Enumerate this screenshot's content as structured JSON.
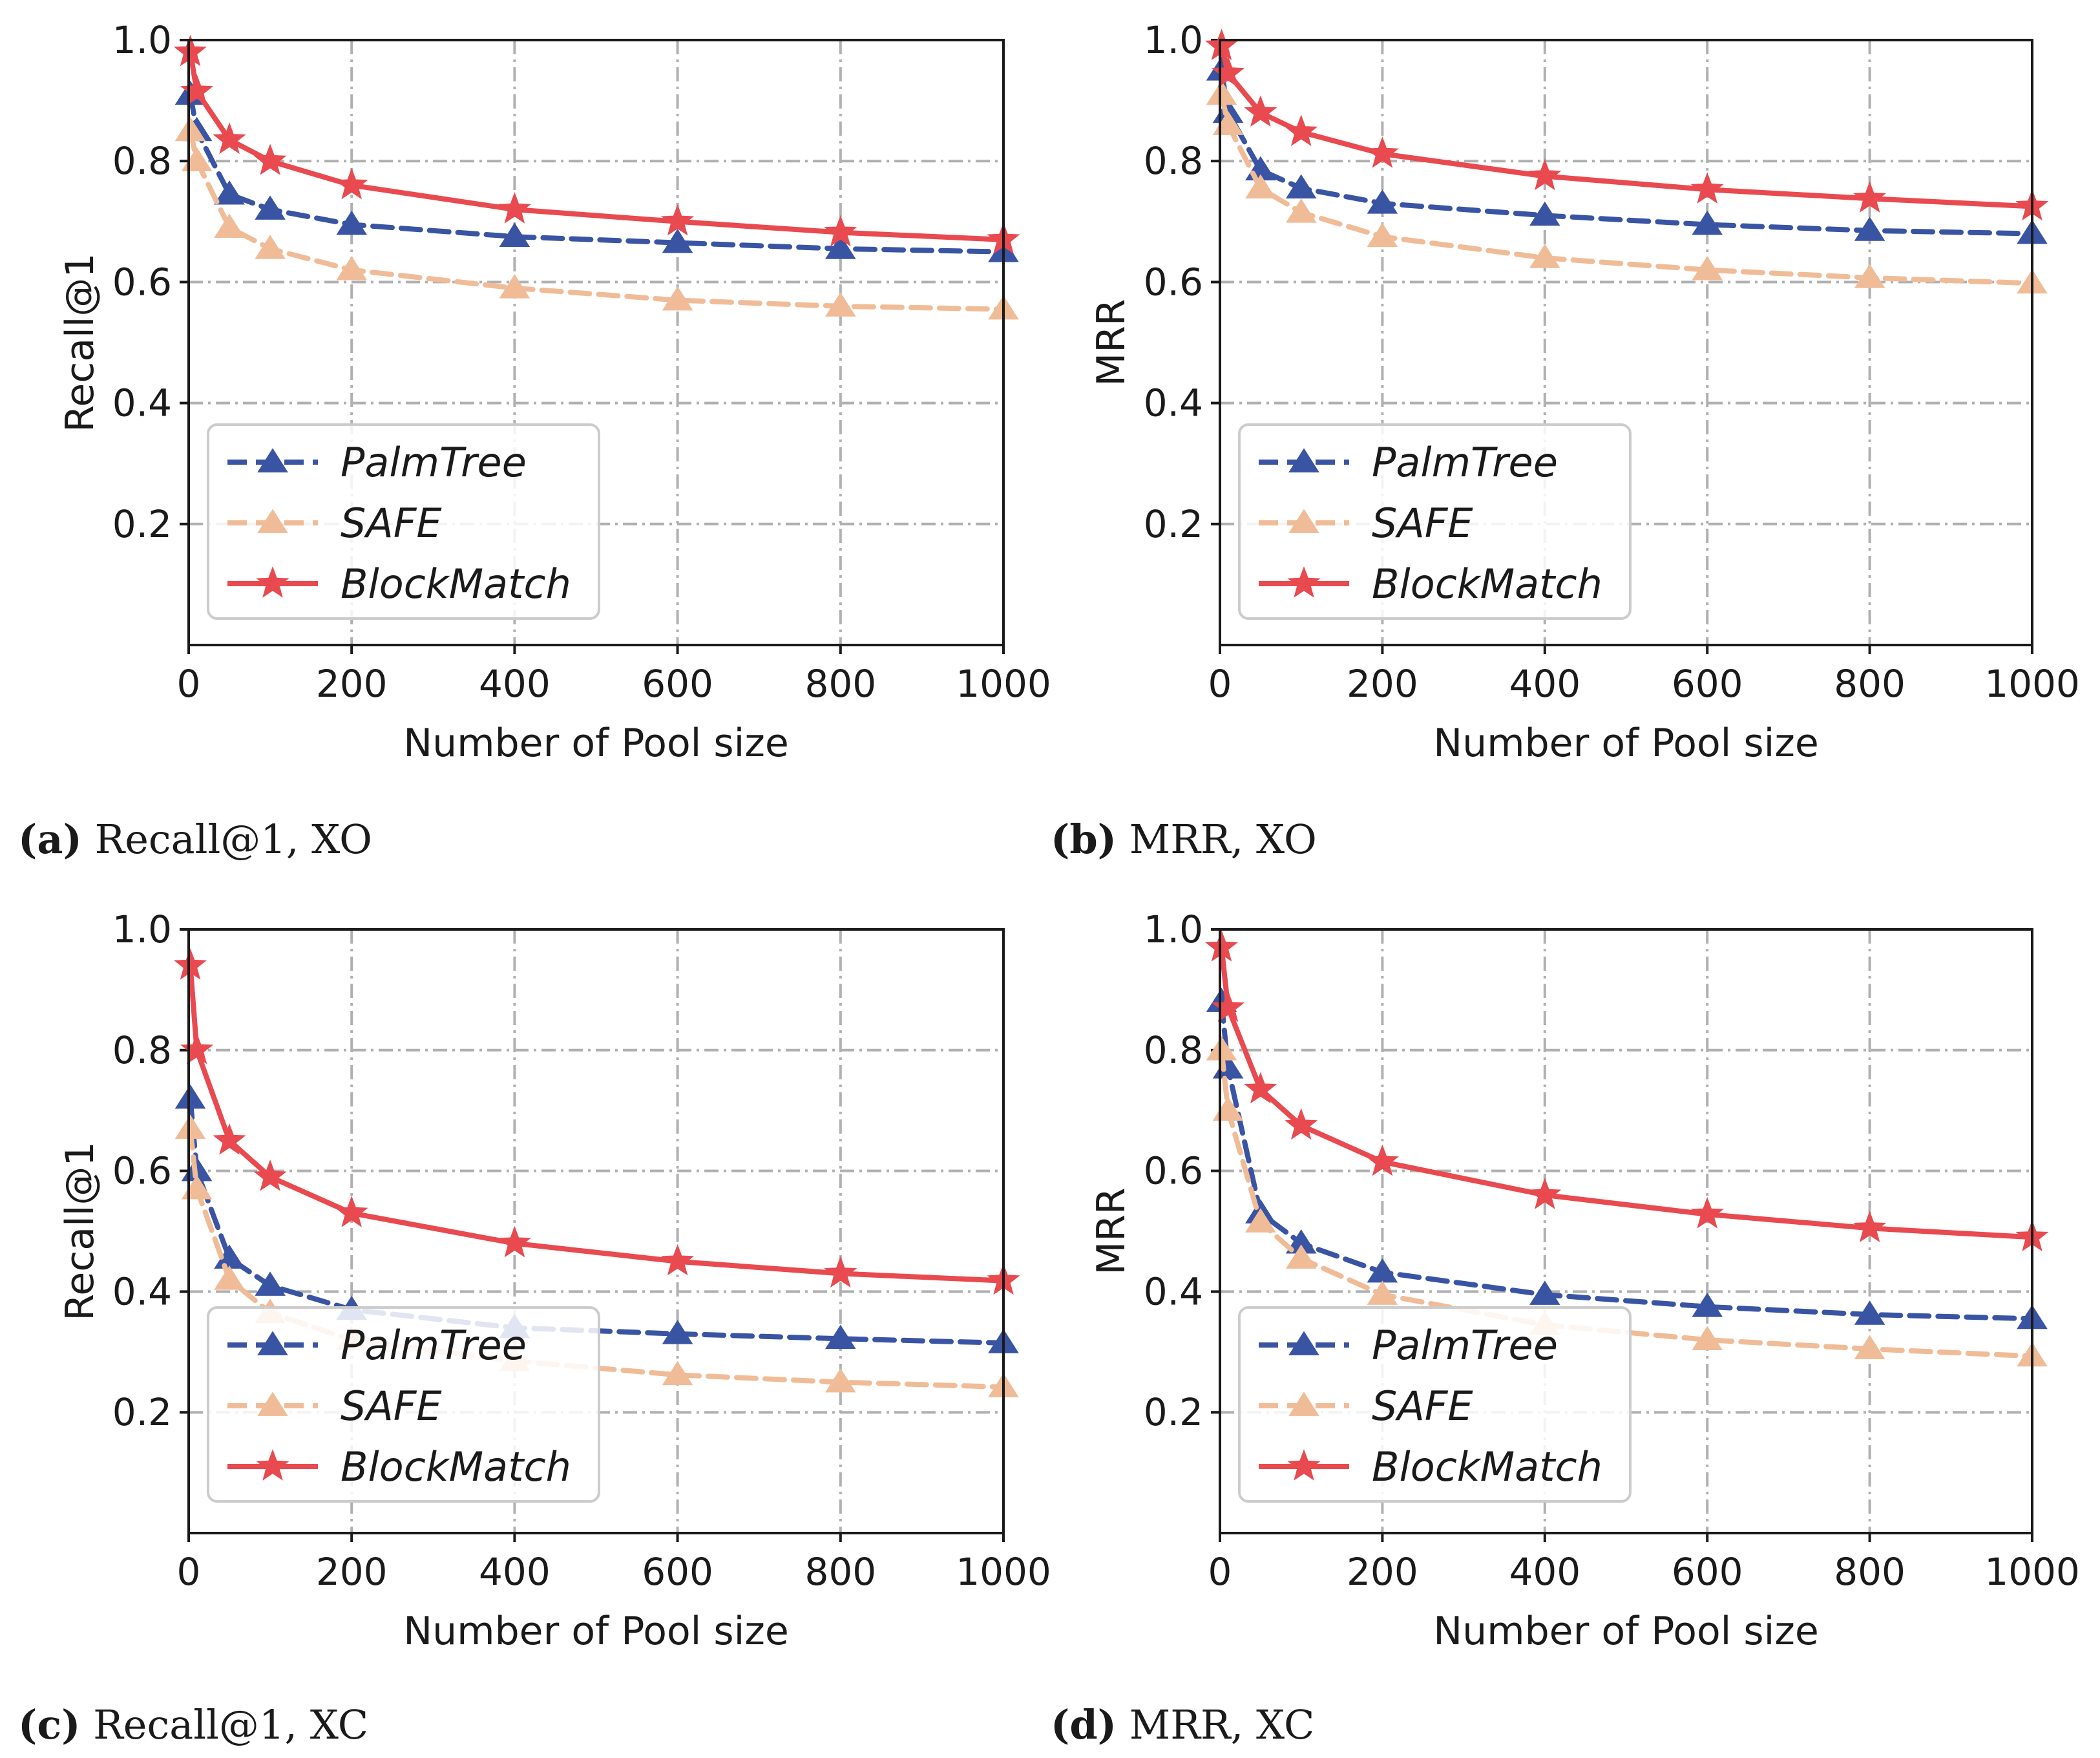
{
  "colors": {
    "PalmTree": "#3a54a4",
    "SAFE": "#f0bc97",
    "BlockMatch": "#e84a4f"
  },
  "chart_data": [
    {
      "id": "a",
      "type": "line",
      "caption_id": "(a)",
      "caption_text": " Recall@1, XO",
      "xlabel": "Number of Pool size",
      "ylabel": "Recall@1",
      "xlim": [
        0,
        1000
      ],
      "ylim": [
        0,
        1.0
      ],
      "xticks": [
        "0",
        "200",
        "400",
        "600",
        "800",
        "1000"
      ],
      "yticks": [
        "0.2",
        "0.4",
        "0.6",
        "0.8",
        "1.0"
      ],
      "grid": true,
      "legend_position": "lower-left",
      "x": [
        2,
        10,
        50,
        100,
        200,
        400,
        600,
        800,
        1000
      ],
      "series": [
        {
          "name": "PalmTree",
          "marker": "triangle",
          "dash": "dashed",
          "values": [
            0.91,
            0.85,
            0.745,
            0.72,
            0.695,
            0.675,
            0.665,
            0.655,
            0.65
          ]
        },
        {
          "name": "SAFE",
          "marker": "triangle",
          "dash": "dashed",
          "values": [
            0.85,
            0.8,
            0.69,
            0.655,
            0.62,
            0.59,
            0.57,
            0.56,
            0.555
          ]
        },
        {
          "name": "BlockMatch",
          "marker": "star",
          "dash": "solid",
          "values": [
            0.98,
            0.915,
            0.835,
            0.8,
            0.76,
            0.72,
            0.7,
            0.682,
            0.67
          ]
        }
      ]
    },
    {
      "id": "b",
      "type": "line",
      "caption_id": "(b)",
      "caption_text": " MRR, XO",
      "xlabel": "Number of Pool size",
      "ylabel": "MRR",
      "xlim": [
        0,
        1000
      ],
      "ylim": [
        0,
        1.0
      ],
      "xticks": [
        "0",
        "200",
        "400",
        "600",
        "800",
        "1000"
      ],
      "yticks": [
        "0.2",
        "0.4",
        "0.6",
        "0.8",
        "1.0"
      ],
      "grid": true,
      "legend_position": "lower-left",
      "x": [
        2,
        10,
        50,
        100,
        200,
        400,
        600,
        800,
        1000
      ],
      "series": [
        {
          "name": "PalmTree",
          "marker": "triangle",
          "dash": "dashed",
          "values": [
            0.95,
            0.88,
            0.785,
            0.755,
            0.73,
            0.71,
            0.695,
            0.685,
            0.68
          ]
        },
        {
          "name": "SAFE",
          "marker": "triangle",
          "dash": "dashed",
          "values": [
            0.91,
            0.86,
            0.755,
            0.715,
            0.675,
            0.64,
            0.62,
            0.607,
            0.598
          ]
        },
        {
          "name": "BlockMatch",
          "marker": "star",
          "dash": "solid",
          "values": [
            0.99,
            0.945,
            0.88,
            0.848,
            0.812,
            0.775,
            0.753,
            0.738,
            0.725
          ]
        }
      ]
    },
    {
      "id": "c",
      "type": "line",
      "caption_id": "(c)",
      "caption_text": " Recall@1, XC",
      "xlabel": "Number of Pool size",
      "ylabel": "Recall@1",
      "xlim": [
        0,
        1000
      ],
      "ylim": [
        0,
        1.0
      ],
      "xticks": [
        "0",
        "200",
        "400",
        "600",
        "800",
        "1000"
      ],
      "yticks": [
        "0.2",
        "0.4",
        "0.6",
        "0.8",
        "1.0"
      ],
      "grid": true,
      "legend_position": "lower-left",
      "x": [
        2,
        10,
        50,
        100,
        200,
        400,
        600,
        800,
        1000
      ],
      "series": [
        {
          "name": "PalmTree",
          "marker": "triangle",
          "dash": "dashed",
          "values": [
            0.72,
            0.6,
            0.455,
            0.41,
            0.37,
            0.34,
            0.33,
            0.322,
            0.315
          ]
        },
        {
          "name": "SAFE",
          "marker": "triangle",
          "dash": "dashed",
          "values": [
            0.67,
            0.57,
            0.42,
            0.365,
            0.32,
            0.285,
            0.262,
            0.25,
            0.242
          ]
        },
        {
          "name": "BlockMatch",
          "marker": "star",
          "dash": "solid",
          "values": [
            0.94,
            0.8,
            0.65,
            0.59,
            0.53,
            0.48,
            0.45,
            0.43,
            0.418
          ]
        }
      ]
    },
    {
      "id": "d",
      "type": "line",
      "caption_id": "(d)",
      "caption_text": " MRR, XC",
      "xlabel": "Number of Pool size",
      "ylabel": "MRR",
      "xlim": [
        0,
        1000
      ],
      "ylim": [
        0,
        1.0
      ],
      "xticks": [
        "0",
        "200",
        "400",
        "600",
        "800",
        "1000"
      ],
      "yticks": [
        "0.2",
        "0.4",
        "0.6",
        "0.8",
        "1.0"
      ],
      "grid": true,
      "legend_position": "lower-left",
      "x": [
        2,
        10,
        50,
        100,
        200,
        400,
        600,
        800,
        1000
      ],
      "series": [
        {
          "name": "PalmTree",
          "marker": "triangle",
          "dash": "dashed",
          "values": [
            0.88,
            0.77,
            0.53,
            0.48,
            0.432,
            0.395,
            0.375,
            0.362,
            0.355
          ]
        },
        {
          "name": "SAFE",
          "marker": "triangle",
          "dash": "dashed",
          "values": [
            0.8,
            0.7,
            0.515,
            0.455,
            0.395,
            0.345,
            0.32,
            0.305,
            0.293
          ]
        },
        {
          "name": "BlockMatch",
          "marker": "star",
          "dash": "solid",
          "values": [
            0.97,
            0.87,
            0.735,
            0.675,
            0.615,
            0.56,
            0.528,
            0.505,
            0.49
          ]
        }
      ]
    }
  ]
}
